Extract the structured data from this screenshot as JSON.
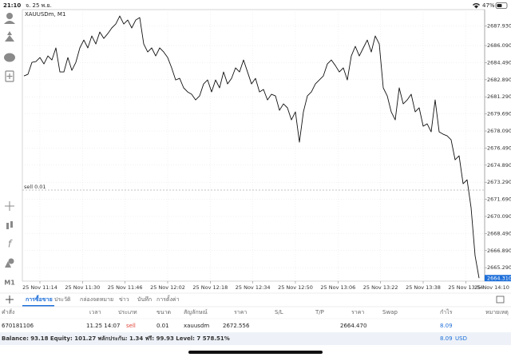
{
  "status_bar": {
    "time": "21:10",
    "date": "จ. 25 พ.ย.",
    "battery": "47%"
  },
  "toolbar": {
    "timeframe": "M1"
  },
  "chart_data": {
    "type": "line",
    "title": "XAUUSDm, M1",
    "color": "#111111",
    "grid": true,
    "x": [
      8,
      9.5,
      11,
      12.5,
      14,
      15.5,
      17,
      18.5,
      20,
      21.5,
      23,
      24.5,
      26,
      27.5,
      29,
      30.5,
      32,
      33.5,
      35,
      36.5,
      38,
      39.5,
      41,
      42.5,
      44,
      45.5,
      47,
      48.5,
      50,
      51.5,
      53,
      54.5,
      56,
      57.5,
      59,
      60.5,
      62,
      63.5,
      65,
      66.5,
      68,
      69.5,
      71,
      72.5,
      74,
      75.5,
      77,
      78.5,
      80,
      81.5,
      83,
      84.5,
      86,
      87.5,
      89,
      90.5,
      92,
      93.5,
      95,
      96.5,
      98,
      99.5,
      101,
      102.5,
      104,
      105.5,
      107,
      108.5,
      110,
      111.5,
      113,
      114.5,
      116,
      117.5,
      119,
      120.5,
      122,
      123.5,
      125,
      126.5,
      128,
      129.5,
      131,
      132.5,
      134,
      135.5,
      137,
      138.5,
      140,
      141.5,
      143,
      144.5,
      146,
      147.5,
      149,
      150.5,
      152,
      153.5,
      155,
      156.5,
      158,
      159.5,
      161,
      162.5,
      164,
      165.5,
      167,
      168.5,
      170,
      171.5,
      173,
      174.5,
      176,
      177.5,
      179
    ],
    "values": [
      2683.25,
      2683.4,
      2684.52,
      2684.59,
      2684.97,
      2684.37,
      2685.12,
      2684.74,
      2685.87,
      2683.62,
      2683.62,
      2684.97,
      2683.77,
      2684.52,
      2685.87,
      2686.61,
      2685.87,
      2686.99,
      2686.24,
      2687.36,
      2686.76,
      2687.21,
      2687.74,
      2688.11,
      2688.86,
      2688.11,
      2688.48,
      2687.74,
      2688.48,
      2688.71,
      2686.24,
      2685.49,
      2685.87,
      2685.12,
      2685.87,
      2685.49,
      2684.97,
      2684.0,
      2682.87,
      2683.02,
      2682.13,
      2681.75,
      2681.53,
      2681.0,
      2681.38,
      2682.5,
      2682.87,
      2681.75,
      2682.87,
      2682.13,
      2683.62,
      2682.5,
      2683.02,
      2684.0,
      2683.62,
      2684.74,
      2683.62,
      2682.5,
      2683.02,
      2681.75,
      2681.98,
      2681.0,
      2681.53,
      2681.38,
      2680.03,
      2680.63,
      2680.26,
      2679.13,
      2679.88,
      2677.04,
      2679.88,
      2681.38,
      2681.75,
      2682.5,
      2682.87,
      2683.25,
      2684.37,
      2684.74,
      2684.22,
      2683.62,
      2684.0,
      2682.87,
      2685.12,
      2686.02,
      2685.12,
      2685.87,
      2686.61,
      2685.49,
      2686.99,
      2686.24,
      2682.13,
      2681.38,
      2679.88,
      2679.13,
      2682.13,
      2680.63,
      2681.0,
      2681.53,
      2679.88,
      2680.26,
      2678.54,
      2678.76,
      2678.01,
      2681.0,
      2678.01,
      2677.79,
      2677.64,
      2677.26,
      2675.39,
      2675.77,
      2673.15,
      2673.52,
      2670.91,
      2666.42,
      2664.31
    ],
    "xlim": [
      7.4,
      191
    ],
    "xticks": [
      {
        "value": 14,
        "label": "25 Nov 11:14"
      },
      {
        "value": 30,
        "label": "25 Nov 11:30"
      },
      {
        "value": 46,
        "label": "25 Nov 11:46"
      },
      {
        "value": 62,
        "label": "25 Nov 12:02"
      },
      {
        "value": 78,
        "label": "25 Nov 12:18"
      },
      {
        "value": 94,
        "label": "25 Nov 12:34"
      },
      {
        "value": 110,
        "label": "25 Nov 12:50"
      },
      {
        "value": 126,
        "label": "25 Nov 13:06"
      },
      {
        "value": 142,
        "label": "25 Nov 13:22"
      },
      {
        "value": 158,
        "label": "25 Nov 13:38"
      },
      {
        "value": 174,
        "label": "25 Nov 13:54"
      },
      {
        "value": 190,
        "label": "25 Nov 14:10"
      }
    ],
    "ylim": [
      2664.03,
      2689.46
    ],
    "yticks": [
      {
        "value": 2687.93,
        "label": "2687.930"
      },
      {
        "value": 2686.09,
        "label": "2686.090"
      },
      {
        "value": 2684.49,
        "label": "2684.490"
      },
      {
        "value": 2682.89,
        "label": "2682.890"
      },
      {
        "value": 2681.29,
        "label": "2681.290"
      },
      {
        "value": 2679.69,
        "label": "2679.690"
      },
      {
        "value": 2678.09,
        "label": "2678.090"
      },
      {
        "value": 2676.49,
        "label": "2676.490"
      },
      {
        "value": 2674.89,
        "label": "2674.890"
      },
      {
        "value": 2673.29,
        "label": "2673.290"
      },
      {
        "value": 2671.69,
        "label": "2671.690"
      },
      {
        "value": 2670.09,
        "label": "2670.090"
      },
      {
        "value": 2668.49,
        "label": "2668.490"
      },
      {
        "value": 2666.89,
        "label": "2666.890"
      },
      {
        "value": 2665.29,
        "label": "2665.290"
      }
    ],
    "order_line": {
      "label": "sell 0.01",
      "value": 2672.556
    },
    "current_price": {
      "value": 2664.31,
      "label": "2664.310"
    }
  },
  "tabs": [
    "การซื้อขาย",
    "ประวัติ",
    "กล่องจดหมาย",
    "ข่าว",
    "บันทึก",
    "การตั้งค่า"
  ],
  "table": {
    "header": [
      "คำสั่ง",
      "เวลา",
      "ประเภท",
      "ขนาด",
      "สัญลักษณ์",
      "ราคา",
      "S/L",
      "T/P",
      "ราคา",
      "Swap",
      "กำไร",
      "หมายเหตุ"
    ],
    "row": {
      "order": "670181106",
      "time": "11.25 14:07",
      "type": "sell",
      "volume": "0.01",
      "symbol": "xauusdm",
      "open_price": "2672.556",
      "price": "2664.470",
      "profit": "8.09"
    }
  },
  "footer": {
    "summary": "Balance: 93.18 Equity: 101.27 พลักประกัน: 1.34 ฟรี: 99.93 Level: 7 578.51%",
    "profit": "8.09",
    "currency": "USD"
  }
}
